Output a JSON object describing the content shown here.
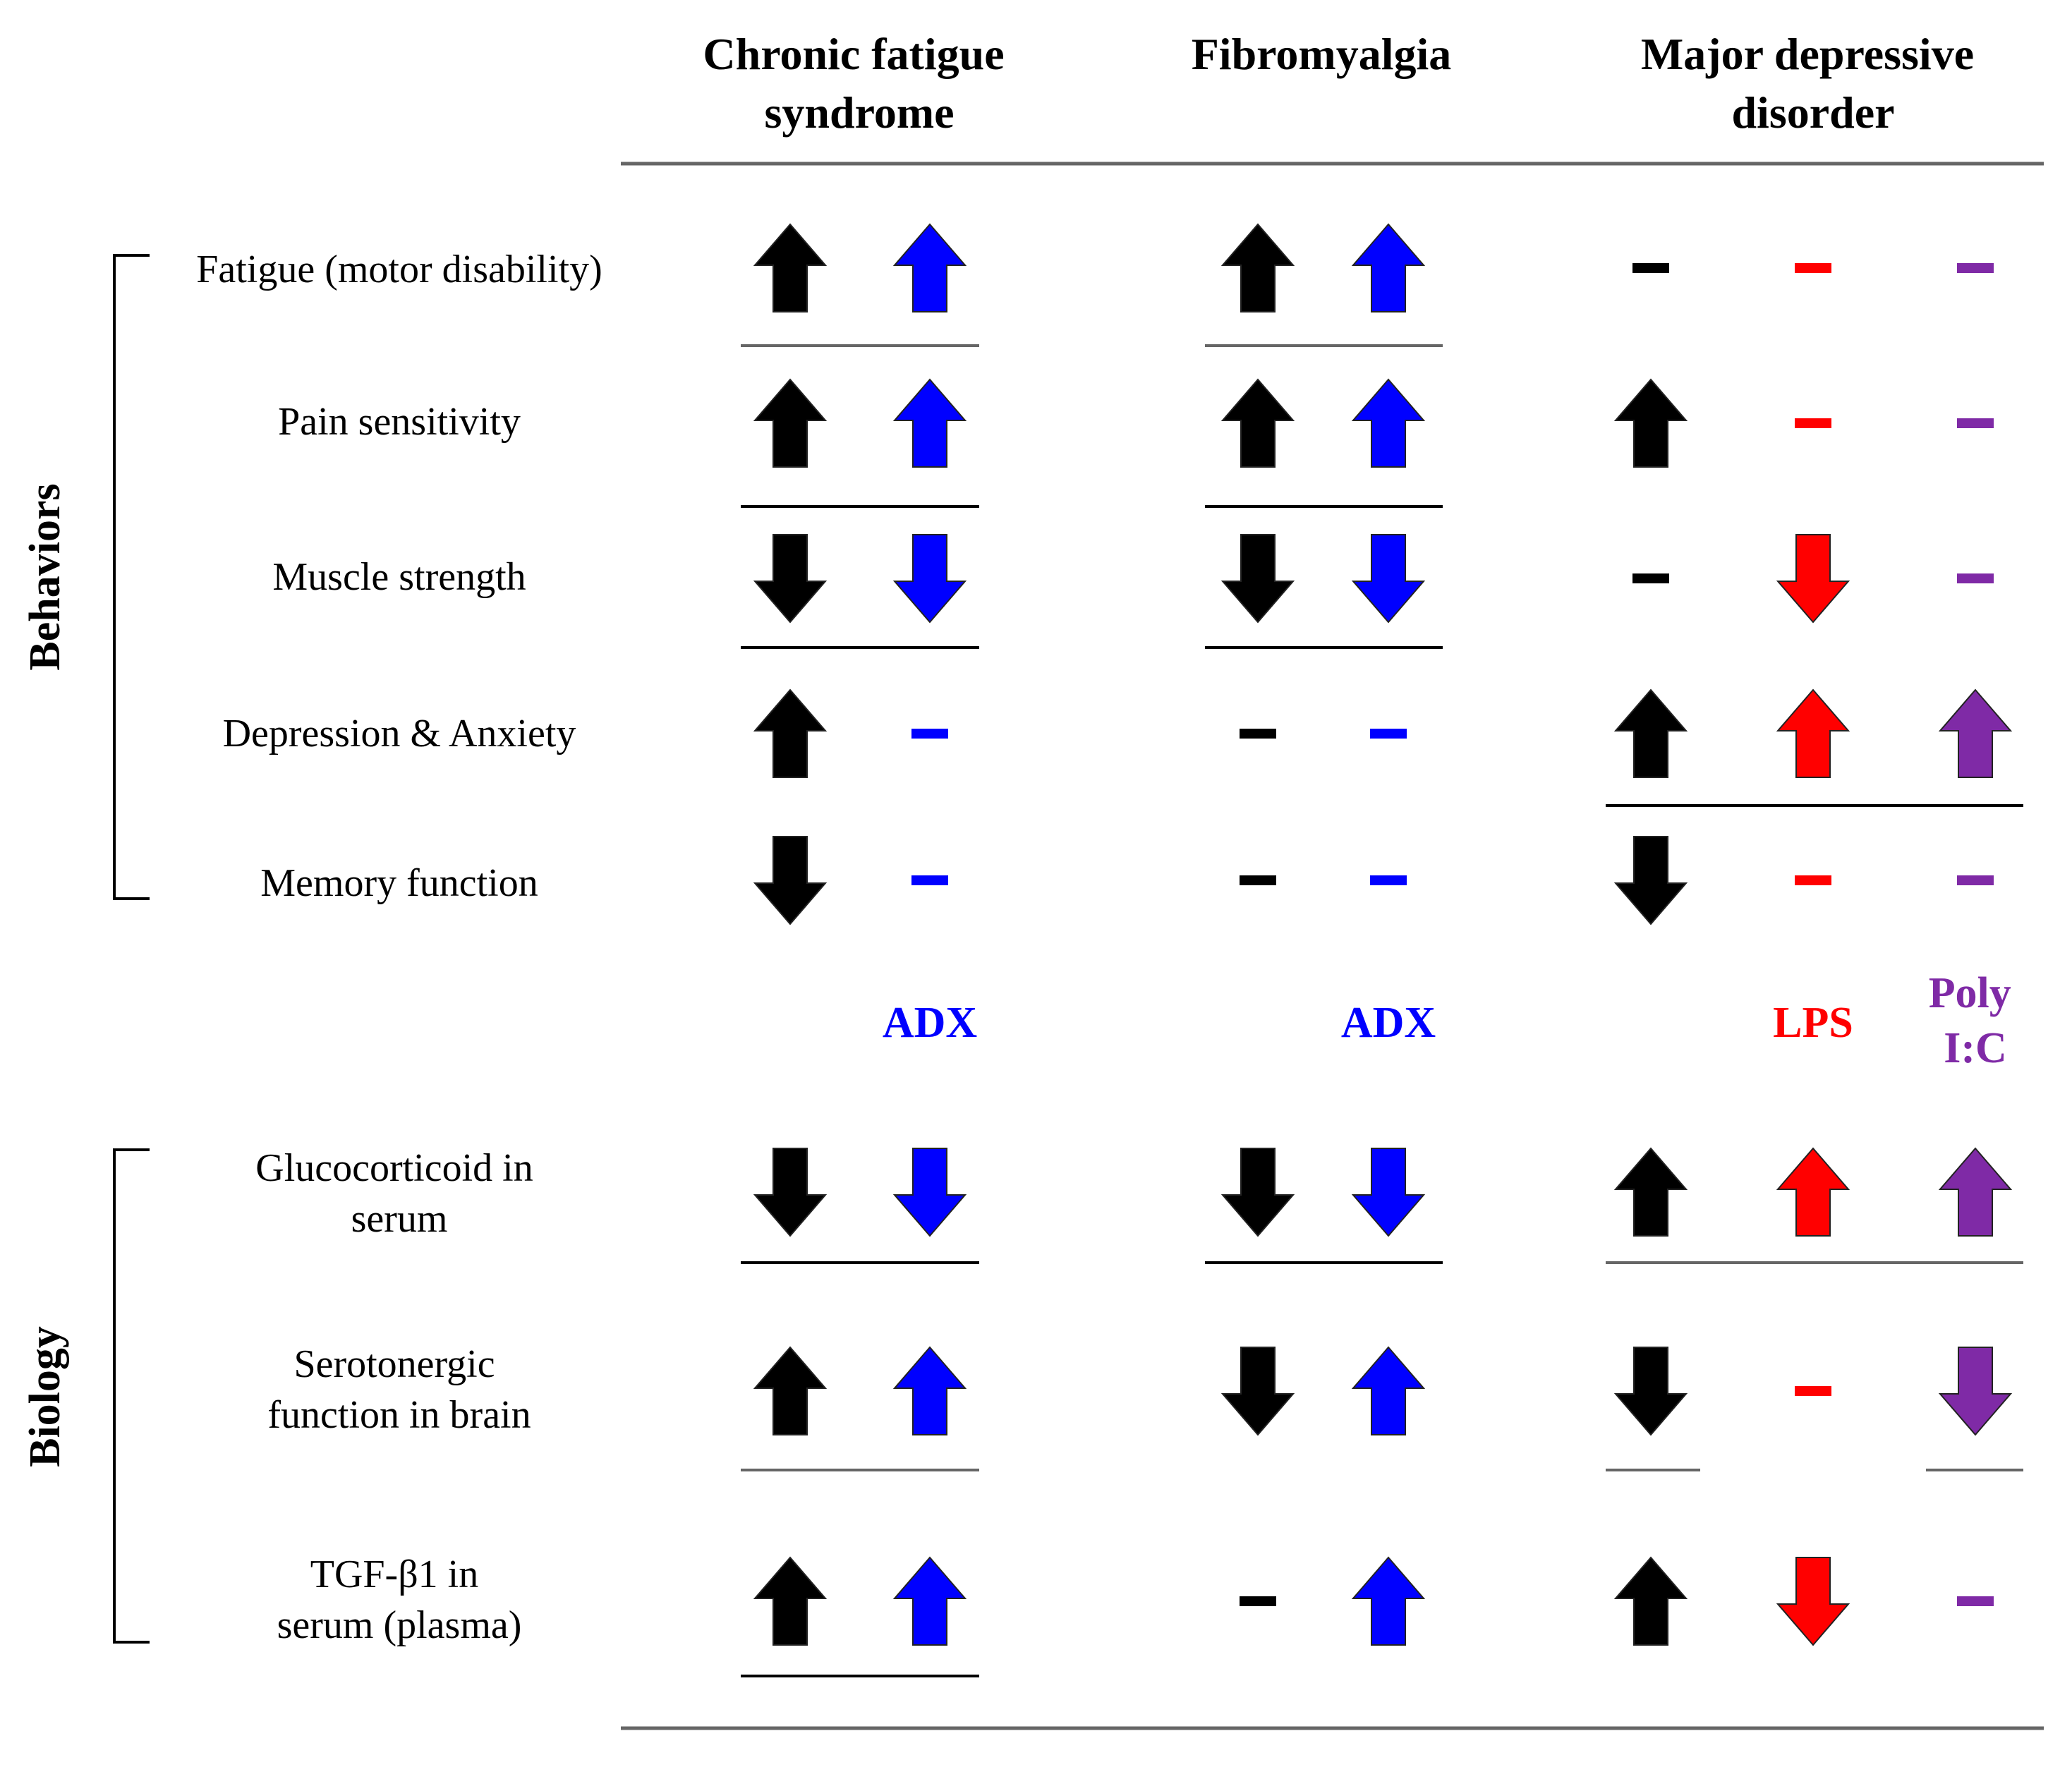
{
  "colors": {
    "patient": "#000000",
    "adx": "#0000ff",
    "lps": "#ff0000",
    "polyic": "#7f2aa6",
    "rule": "#666666"
  },
  "headers": {
    "cfs": [
      "Chronic fatigue",
      "syndrome"
    ],
    "fm": [
      "Fibromyalgia"
    ],
    "mdd": [
      "Major depressive",
      "disorder"
    ]
  },
  "groups": {
    "behaviors": "Behaviors",
    "biology": "Biology"
  },
  "models": {
    "cfs_adx": "ADX",
    "fm_adx": "ADX",
    "mdd_lps": "LPS",
    "mdd_polyic": [
      "Poly",
      "I:C"
    ]
  },
  "rows": [
    {
      "label": [
        "Fatigue (motor disability)"
      ],
      "cfs": [
        "up",
        "up"
      ],
      "fm": [
        "up",
        "up"
      ],
      "mdd": [
        "none",
        "none",
        "none"
      ]
    },
    {
      "label": [
        "Pain sensitivity"
      ],
      "cfs": [
        "up",
        "up"
      ],
      "fm": [
        "up",
        "up"
      ],
      "mdd": [
        "up",
        "none",
        "none"
      ]
    },
    {
      "label": [
        "Muscle strength"
      ],
      "cfs": [
        "down",
        "down"
      ],
      "fm": [
        "down",
        "down"
      ],
      "mdd": [
        "none",
        "down",
        "none"
      ]
    },
    {
      "label": [
        "Depression & Anxiety"
      ],
      "cfs": [
        "up",
        "none"
      ],
      "fm": [
        "none",
        "none"
      ],
      "mdd": [
        "up",
        "up",
        "up"
      ]
    },
    {
      "label": [
        "Memory function"
      ],
      "cfs": [
        "down",
        "none"
      ],
      "fm": [
        "none",
        "none"
      ],
      "mdd": [
        "down",
        "none",
        "none"
      ]
    },
    {
      "label": [
        "Glucocorticoid in",
        "serum"
      ],
      "cfs": [
        "down",
        "down"
      ],
      "fm": [
        "down",
        "down"
      ],
      "mdd": [
        "up",
        "up",
        "up"
      ]
    },
    {
      "label": [
        "Serotonergic",
        "function in brain"
      ],
      "cfs": [
        "up",
        "up"
      ],
      "fm": [
        "down",
        "up"
      ],
      "mdd": [
        "down",
        "none",
        "down"
      ]
    },
    {
      "label": [
        "TGF-β1 in",
        "serum (plasma)"
      ],
      "cfs": [
        "up",
        "up"
      ],
      "fm": [
        "none",
        "up"
      ],
      "mdd": [
        "up",
        "down",
        "none"
      ]
    }
  ]
}
